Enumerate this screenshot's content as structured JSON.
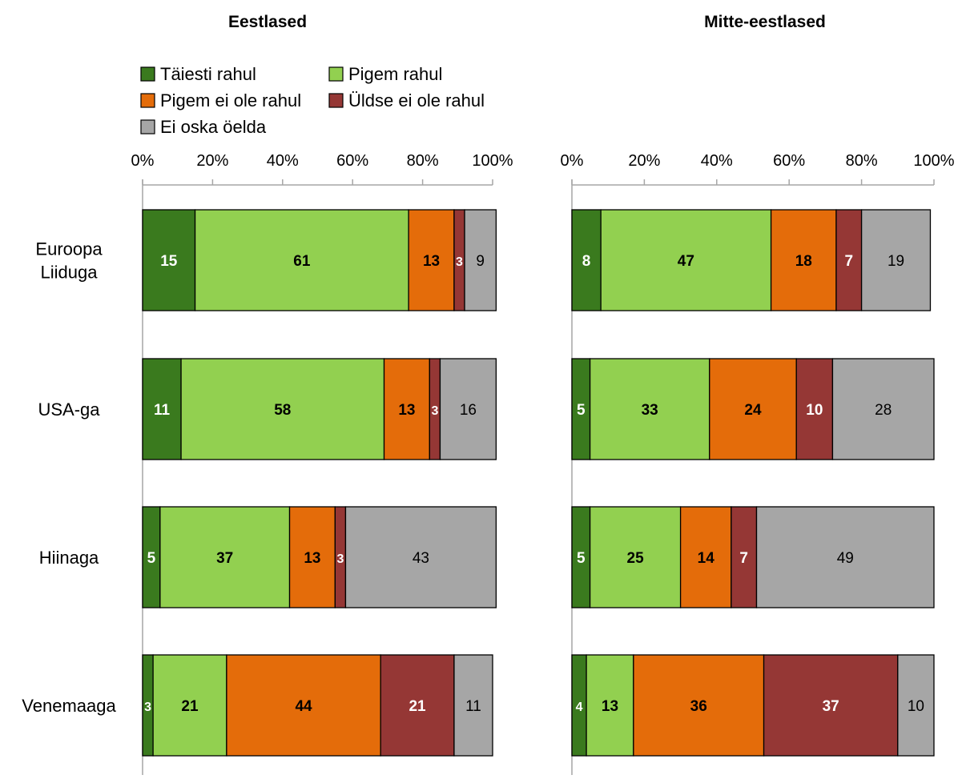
{
  "chart_data": [
    {
      "type": "bar",
      "orientation": "horizontal",
      "stacked": true,
      "title": "Eestlased",
      "xlabel": "",
      "ylabel": "",
      "xlim": [
        0,
        100
      ],
      "x_ticks": [
        "0%",
        "20%",
        "40%",
        "60%",
        "80%",
        "100%"
      ],
      "categories": [
        "Euroopa Liiduga",
        "USA-ga",
        "Hiinaga",
        "Venemaaga"
      ],
      "series": [
        {
          "name": "Täiesti rahul",
          "color": "#3A7A1E",
          "values": [
            15,
            11,
            5,
            3
          ]
        },
        {
          "name": "Pigem rahul",
          "color": "#92D050",
          "values": [
            61,
            58,
            37,
            21
          ]
        },
        {
          "name": "Pigem ei ole rahul",
          "color": "#E46C0A",
          "values": [
            13,
            13,
            13,
            44
          ]
        },
        {
          "name": "Üldse ei ole rahul",
          "color": "#953735",
          "values": [
            3,
            3,
            3,
            21
          ]
        },
        {
          "name": "Ei oska öelda",
          "color": "#A6A6A6",
          "values": [
            9,
            16,
            43,
            11
          ]
        }
      ],
      "legend": "top"
    },
    {
      "type": "bar",
      "orientation": "horizontal",
      "stacked": true,
      "title": "Mitte-eestlased",
      "xlabel": "",
      "ylabel": "",
      "xlim": [
        0,
        100
      ],
      "x_ticks": [
        "0%",
        "20%",
        "40%",
        "60%",
        "80%",
        "100%"
      ],
      "categories": [
        "Euroopa Liiduga",
        "USA-ga",
        "Hiinaga",
        "Venemaaga"
      ],
      "series": [
        {
          "name": "Täiesti rahul",
          "color": "#3A7A1E",
          "values": [
            8,
            5,
            5,
            4
          ]
        },
        {
          "name": "Pigem rahul",
          "color": "#92D050",
          "values": [
            47,
            33,
            25,
            13
          ]
        },
        {
          "name": "Pigem ei ole rahul",
          "color": "#E46C0A",
          "values": [
            18,
            24,
            14,
            36
          ]
        },
        {
          "name": "Üldse ei ole rahul",
          "color": "#953735",
          "values": [
            7,
            10,
            7,
            37
          ]
        },
        {
          "name": "Ei oska öelda",
          "color": "#A6A6A6",
          "values": [
            19,
            28,
            49,
            10
          ]
        }
      ]
    }
  ],
  "category_label_lines": [
    [
      "Euroopa",
      "Liiduga"
    ],
    [
      "USA-ga"
    ],
    [
      "Hiinaga"
    ],
    [
      "Venemaaga"
    ]
  ],
  "legend_items": [
    {
      "label": "Täiesti rahul",
      "color": "#3A7A1E"
    },
    {
      "label": "Pigem rahul",
      "color": "#92D050"
    },
    {
      "label": "Pigem ei ole rahul",
      "color": "#E46C0A"
    },
    {
      "label": "Üldse ei ole rahul",
      "color": "#953735"
    },
    {
      "label": "Ei oska öelda",
      "color": "#A6A6A6"
    }
  ]
}
